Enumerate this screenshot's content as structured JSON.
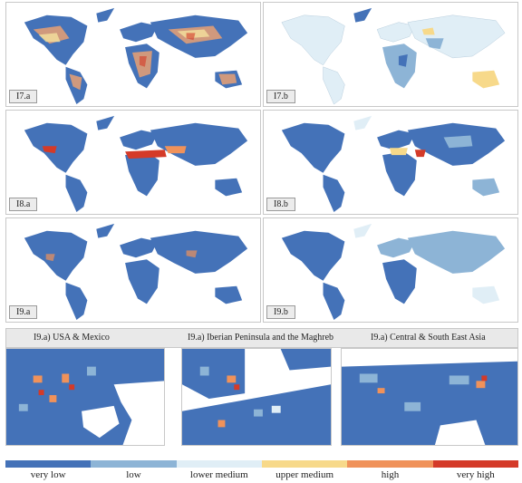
{
  "panels": [
    {
      "label": "I7.a"
    },
    {
      "label": "I7.b"
    },
    {
      "label": "I8.a"
    },
    {
      "label": "I8.b"
    },
    {
      "label": "I9.a"
    },
    {
      "label": "I9.b"
    }
  ],
  "zoom_titles": [
    "I9.a) USA & Mexico",
    "I9.a) Iberian Peninsula and the Maghreb",
    "I9.a) Central & South East Asia"
  ],
  "legend": {
    "labels": [
      "very low",
      "low",
      "lower medium",
      "upper medium",
      "high",
      "very high"
    ],
    "colors": [
      "#4472b8",
      "#8db4d6",
      "#e0eef6",
      "#f7d98a",
      "#f0925a",
      "#d43a28"
    ]
  }
}
